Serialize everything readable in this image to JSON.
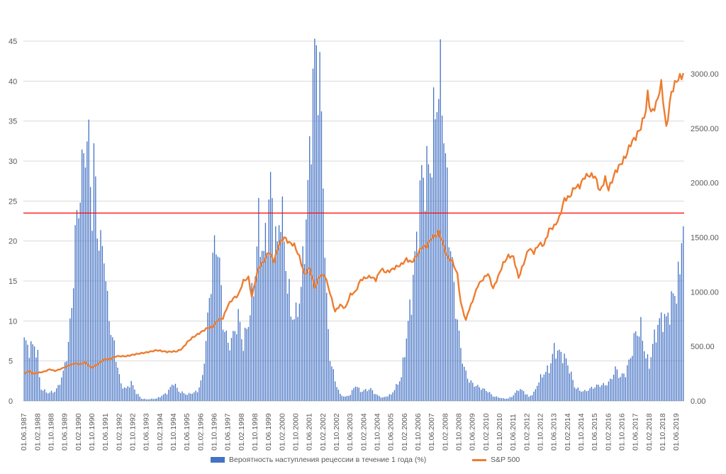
{
  "chart_data": {
    "type": "bar",
    "series": [
      {
        "name": "Вероятность наступления рецессии в течение 1 года (%)",
        "kind": "bar",
        "axis": "left",
        "color": "#4472c4",
        "anchors": [
          [
            "1987-06",
            7.5
          ],
          [
            "1987-09",
            6.5
          ],
          [
            "1987-12",
            7.0
          ],
          [
            "1988-02",
            5.5
          ],
          [
            "1988-03",
            3.0
          ],
          [
            "1988-04",
            1.5
          ],
          [
            "1988-08",
            1.0
          ],
          [
            "1988-12",
            1.2
          ],
          [
            "1989-02",
            1.8
          ],
          [
            "1989-05",
            3.5
          ],
          [
            "1989-08",
            7.0
          ],
          [
            "1989-10",
            12.0
          ],
          [
            "1989-12",
            20.0
          ],
          [
            "1990-02",
            25.0
          ],
          [
            "1990-04",
            28.0
          ],
          [
            "1990-06",
            33.0
          ],
          [
            "1990-08",
            31.5
          ],
          [
            "1990-10",
            24.0
          ],
          [
            "1990-11",
            30.0
          ],
          [
            "1991-01",
            22.0
          ],
          [
            "1991-03",
            19.0
          ],
          [
            "1991-05",
            19.0
          ],
          [
            "1991-07",
            12.0
          ],
          [
            "1991-09",
            9.0
          ],
          [
            "1991-12",
            5.5
          ],
          [
            "1992-03",
            2.0
          ],
          [
            "1992-06",
            1.5
          ],
          [
            "1992-09",
            2.3
          ],
          [
            "1992-12",
            1.0
          ],
          [
            "1993-03",
            0.3
          ],
          [
            "1993-06",
            0.2
          ],
          [
            "1993-12",
            0.3
          ],
          [
            "1994-06",
            1.0
          ],
          [
            "1994-10",
            2.3
          ],
          [
            "1995-01",
            1.2
          ],
          [
            "1995-06",
            0.8
          ],
          [
            "1995-12",
            1.2
          ],
          [
            "1996-03",
            3.0
          ],
          [
            "1996-06",
            10.0
          ],
          [
            "1996-09",
            18.0
          ],
          [
            "1996-12",
            20.0
          ],
          [
            "1997-03",
            10.0
          ],
          [
            "1997-06",
            7.0
          ],
          [
            "1997-09",
            8.0
          ],
          [
            "1997-12",
            10.5
          ],
          [
            "1998-03",
            7.0
          ],
          [
            "1998-06",
            10.0
          ],
          [
            "1998-09",
            14.0
          ],
          [
            "1998-12",
            22.0
          ],
          [
            "1999-03",
            18.0
          ],
          [
            "1999-05",
            22.0
          ],
          [
            "1999-07",
            27.0
          ],
          [
            "1999-09",
            21.0
          ],
          [
            "1999-11",
            19.0
          ],
          [
            "2000-01",
            25.0
          ],
          [
            "2000-04",
            17.0
          ],
          [
            "2000-07",
            11.0
          ],
          [
            "2000-10",
            10.5
          ],
          [
            "2001-01",
            14.0
          ],
          [
            "2001-03",
            20.0
          ],
          [
            "2001-05",
            26.0
          ],
          [
            "2001-08",
            40.0
          ],
          [
            "2001-10",
            44.0
          ],
          [
            "2001-12",
            40.0
          ],
          [
            "2002-02",
            28.0
          ],
          [
            "2002-04",
            12.0
          ],
          [
            "2002-06",
            5.5
          ],
          [
            "2002-09",
            2.5
          ],
          [
            "2002-12",
            0.8
          ],
          [
            "2003-03",
            0.5
          ],
          [
            "2003-06",
            0.8
          ],
          [
            "2003-09",
            2.0
          ],
          [
            "2003-12",
            1.2
          ],
          [
            "2004-06",
            1.5
          ],
          [
            "2004-09",
            0.8
          ],
          [
            "2005-01",
            0.4
          ],
          [
            "2005-06",
            0.8
          ],
          [
            "2005-09",
            1.8
          ],
          [
            "2005-12",
            3.0
          ],
          [
            "2006-03",
            8.0
          ],
          [
            "2006-06",
            13.0
          ],
          [
            "2006-09",
            20.0
          ],
          [
            "2006-12",
            28.0
          ],
          [
            "2007-03",
            28.0
          ],
          [
            "2007-06",
            31.0
          ],
          [
            "2007-09",
            39.0
          ],
          [
            "2007-12",
            39.0
          ],
          [
            "2008-02",
            30.0
          ],
          [
            "2008-04",
            22.0
          ],
          [
            "2008-07",
            14.0
          ],
          [
            "2008-10",
            8.0
          ],
          [
            "2009-01",
            4.0
          ],
          [
            "2009-04",
            2.5
          ],
          [
            "2009-07",
            2.0
          ],
          [
            "2009-12",
            1.5
          ],
          [
            "2010-03",
            1.2
          ],
          [
            "2010-06",
            0.6
          ],
          [
            "2010-12",
            0.3
          ],
          [
            "2011-03",
            0.3
          ],
          [
            "2011-06",
            0.7
          ],
          [
            "2011-09",
            1.5
          ],
          [
            "2011-12",
            1.2
          ],
          [
            "2012-03",
            0.5
          ],
          [
            "2012-06",
            1.0
          ],
          [
            "2012-09",
            2.5
          ],
          [
            "2012-12",
            3.5
          ],
          [
            "2013-03",
            4.0
          ],
          [
            "2013-06",
            6.5
          ],
          [
            "2013-09",
            6.0
          ],
          [
            "2013-12",
            5.5
          ],
          [
            "2014-03",
            4.0
          ],
          [
            "2014-06",
            1.8
          ],
          [
            "2014-09",
            1.3
          ],
          [
            "2014-12",
            1.2
          ],
          [
            "2015-03",
            1.5
          ],
          [
            "2015-06",
            1.8
          ],
          [
            "2015-09",
            2.0
          ],
          [
            "2015-12",
            2.0
          ],
          [
            "2016-03",
            2.5
          ],
          [
            "2016-06",
            4.0
          ],
          [
            "2016-09",
            3.0
          ],
          [
            "2016-12",
            3.5
          ],
          [
            "2017-03",
            5.5
          ],
          [
            "2017-06",
            8.5
          ],
          [
            "2017-09",
            9.0
          ],
          [
            "2017-12",
            5.5
          ],
          [
            "2018-02",
            4.5
          ],
          [
            "2018-04",
            7.0
          ],
          [
            "2018-07",
            9.5
          ],
          [
            "2018-10",
            10.5
          ],
          [
            "2018-12",
            10.0
          ],
          [
            "2019-02",
            11.5
          ],
          [
            "2019-04",
            13.0
          ],
          [
            "2019-06",
            14.0
          ],
          [
            "2019-08",
            16.0
          ],
          [
            "2019-09",
            21.0
          ],
          [
            "2019-10",
            23.5
          ]
        ]
      },
      {
        "name": "S&P 500",
        "kind": "line",
        "axis": "right",
        "color": "#ed7d31",
        "anchors": [
          [
            "1987-06",
            250
          ],
          [
            "1987-09",
            275
          ],
          [
            "1987-11",
            250
          ],
          [
            "1988-03",
            260
          ],
          [
            "1988-06",
            270
          ],
          [
            "1988-09",
            290
          ],
          [
            "1988-12",
            275
          ],
          [
            "1989-03",
            290
          ],
          [
            "1989-06",
            310
          ],
          [
            "1989-09",
            330
          ],
          [
            "1989-12",
            345
          ],
          [
            "1990-03",
            335
          ],
          [
            "1990-06",
            355
          ],
          [
            "1990-09",
            310
          ],
          [
            "1990-10",
            305
          ],
          [
            "1991-01",
            335
          ],
          [
            "1991-05",
            380
          ],
          [
            "1991-09",
            385
          ],
          [
            "1991-12",
            410
          ],
          [
            "1992-06",
            410
          ],
          [
            "1992-12",
            430
          ],
          [
            "1993-06",
            445
          ],
          [
            "1993-12",
            465
          ],
          [
            "1994-06",
            450
          ],
          [
            "1994-12",
            455
          ],
          [
            "1995-03",
            480
          ],
          [
            "1995-06",
            540
          ],
          [
            "1995-09",
            580
          ],
          [
            "1995-12",
            610
          ],
          [
            "1996-03",
            640
          ],
          [
            "1996-06",
            670
          ],
          [
            "1996-09",
            680
          ],
          [
            "1996-12",
            740
          ],
          [
            "1997-03",
            760
          ],
          [
            "1997-06",
            880
          ],
          [
            "1997-09",
            940
          ],
          [
            "1997-12",
            970
          ],
          [
            "1998-03",
            1100
          ],
          [
            "1998-06",
            1130
          ],
          [
            "1998-08",
            950
          ],
          [
            "1998-10",
            1100
          ],
          [
            "1998-12",
            1220
          ],
          [
            "1999-03",
            1280
          ],
          [
            "1999-06",
            1370
          ],
          [
            "1999-09",
            1280
          ],
          [
            "1999-12",
            1440
          ],
          [
            "2000-03",
            1500
          ],
          [
            "2000-06",
            1450
          ],
          [
            "2000-09",
            1430
          ],
          [
            "2000-12",
            1320
          ],
          [
            "2001-03",
            1160
          ],
          [
            "2001-06",
            1220
          ],
          [
            "2001-09",
            1040
          ],
          [
            "2001-12",
            1150
          ],
          [
            "2002-03",
            1150
          ],
          [
            "2002-06",
            990
          ],
          [
            "2002-09",
            820
          ],
          [
            "2002-12",
            880
          ],
          [
            "2003-03",
            850
          ],
          [
            "2003-06",
            975
          ],
          [
            "2003-09",
            1000
          ],
          [
            "2003-12",
            1110
          ],
          [
            "2004-03",
            1130
          ],
          [
            "2004-06",
            1140
          ],
          [
            "2004-09",
            1110
          ],
          [
            "2004-12",
            1210
          ],
          [
            "2005-03",
            1180
          ],
          [
            "2005-06",
            1200
          ],
          [
            "2005-09",
            1230
          ],
          [
            "2005-12",
            1250
          ],
          [
            "2006-03",
            1300
          ],
          [
            "2006-06",
            1270
          ],
          [
            "2006-09",
            1330
          ],
          [
            "2006-12",
            1410
          ],
          [
            "2007-03",
            1420
          ],
          [
            "2007-06",
            1500
          ],
          [
            "2007-09",
            1520
          ],
          [
            "2007-10",
            1550
          ],
          [
            "2007-12",
            1470
          ],
          [
            "2008-03",
            1320
          ],
          [
            "2008-06",
            1280
          ],
          [
            "2008-09",
            1160
          ],
          [
            "2008-11",
            900
          ],
          [
            "2009-02",
            735
          ],
          [
            "2009-03",
            800
          ],
          [
            "2009-06",
            920
          ],
          [
            "2009-09",
            1060
          ],
          [
            "2009-12",
            1115
          ],
          [
            "2010-03",
            1170
          ],
          [
            "2010-06",
            1030
          ],
          [
            "2010-09",
            1140
          ],
          [
            "2010-12",
            1260
          ],
          [
            "2011-03",
            1330
          ],
          [
            "2011-06",
            1320
          ],
          [
            "2011-09",
            1130
          ],
          [
            "2011-12",
            1260
          ],
          [
            "2012-03",
            1400
          ],
          [
            "2012-06",
            1360
          ],
          [
            "2012-09",
            1440
          ],
          [
            "2012-12",
            1430
          ],
          [
            "2013-03",
            1570
          ],
          [
            "2013-06",
            1600
          ],
          [
            "2013-09",
            1680
          ],
          [
            "2013-12",
            1850
          ],
          [
            "2014-03",
            1870
          ],
          [
            "2014-06",
            1960
          ],
          [
            "2014-09",
            1970
          ],
          [
            "2014-12",
            2060
          ],
          [
            "2015-03",
            2070
          ],
          [
            "2015-06",
            2060
          ],
          [
            "2015-09",
            1920
          ],
          [
            "2015-12",
            2040
          ],
          [
            "2016-02",
            1940
          ],
          [
            "2016-06",
            2100
          ],
          [
            "2016-09",
            2170
          ],
          [
            "2016-12",
            2240
          ],
          [
            "2017-03",
            2360
          ],
          [
            "2017-06",
            2420
          ],
          [
            "2017-09",
            2510
          ],
          [
            "2017-12",
            2670
          ],
          [
            "2018-01",
            2820
          ],
          [
            "2018-03",
            2640
          ],
          [
            "2018-06",
            2720
          ],
          [
            "2018-09",
            2910
          ],
          [
            "2018-12",
            2500
          ],
          [
            "2019-03",
            2830
          ],
          [
            "2019-06",
            2940
          ],
          [
            "2019-09",
            2980
          ],
          [
            "2019-10",
            3000
          ]
        ]
      }
    ],
    "y_left": {
      "min": 0,
      "max": 45,
      "ticks": [
        0,
        5,
        10,
        15,
        20,
        25,
        30,
        35,
        40,
        45
      ]
    },
    "y_right": {
      "min": 0,
      "max": 3300,
      "ticks": [
        0,
        500,
        1000,
        1500,
        2000,
        2500,
        3000
      ],
      "tick_format": "0.00"
    },
    "threshold_line": {
      "value": 23.5,
      "axis": "left",
      "color": "#ff0000"
    },
    "x_range": [
      "1987-06",
      "2019-10"
    ],
    "x_ticks": [
      "01.06.1987",
      "01.02.1988",
      "01.10.1988",
      "01.06.1989",
      "01.02.1990",
      "01.10.1990",
      "01.06.1991",
      "01.02.1992",
      "01.10.1992",
      "01.06.1993",
      "01.02.1994",
      "01.10.1994",
      "01.06.1995",
      "01.02.1996",
      "01.10.1996",
      "01.06.1997",
      "01.02.1998",
      "01.10.1998",
      "01.06.1999",
      "01.02.2000",
      "01.10.2000",
      "01.06.2001",
      "01.02.2002",
      "01.10.2002",
      "01.06.2003",
      "01.02.2004",
      "01.10.2004",
      "01.06.2005",
      "01.02.2006",
      "01.10.2006",
      "01.06.2007",
      "01.02.2008",
      "01.10.2008",
      "01.06.2009",
      "01.02.2010",
      "01.10.2010",
      "01.06.2011",
      "01.02.2012",
      "01.10.2012",
      "01.06.2013",
      "01.02.2014",
      "01.10.2014",
      "01.06.2015",
      "01.02.2016",
      "01.10.2016",
      "01.06.2017",
      "01.02.2018",
      "01.10.2018",
      "01.06.2019"
    ],
    "grid": "horizontal",
    "legend_position": "bottom-center",
    "title": "",
    "xlabel": "",
    "ylabel": ""
  }
}
